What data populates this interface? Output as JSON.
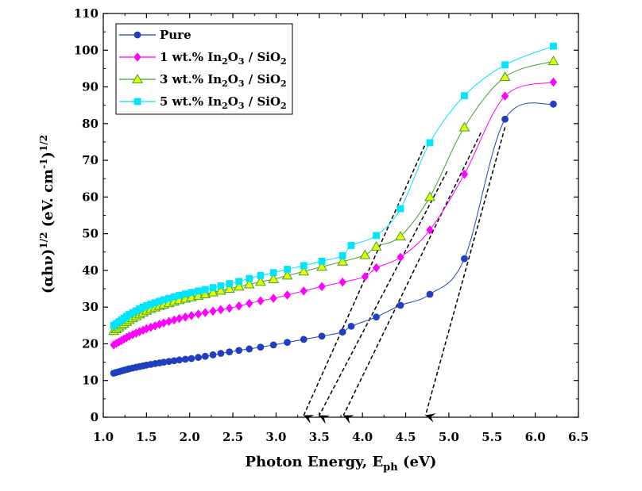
{
  "chart_data": {
    "type": "line",
    "xlabel": "Photon Energy, E",
    "xlabel_sub": "ph",
    "xlabel_unit": " (eV)",
    "ylabel": "(αhν)1/2 (eV. cm-1)1/2",
    "xlim": [
      1.0,
      6.5
    ],
    "ylim": [
      0,
      110
    ],
    "xticks": [
      1.0,
      1.5,
      2.0,
      2.5,
      3.0,
      3.5,
      4.0,
      4.5,
      5.0,
      5.5,
      6.0,
      6.5
    ],
    "yticks": [
      0,
      10,
      20,
      30,
      40,
      50,
      60,
      70,
      80,
      90,
      100,
      110
    ],
    "xtick_labels": [
      "1.0",
      "1.5",
      "2.0",
      "2.5",
      "3.0",
      "3.5",
      "4.0",
      "4.5",
      "5.0",
      "5.5",
      "6.0",
      "6.5"
    ],
    "ytick_labels": [
      "0",
      "10",
      "20",
      "30",
      "40",
      "50",
      "60",
      "70",
      "80",
      "90",
      "100",
      "110"
    ],
    "grid": false,
    "legend_position": "top-left",
    "series": [
      {
        "name": "Pure",
        "color": "#1f3fbf",
        "marker": "circle",
        "points": [
          [
            1.12,
            12.0
          ],
          [
            1.15,
            12.2
          ],
          [
            1.18,
            12.4
          ],
          [
            1.21,
            12.6
          ],
          [
            1.24,
            12.8
          ],
          [
            1.27,
            13.0
          ],
          [
            1.3,
            13.2
          ],
          [
            1.34,
            13.4
          ],
          [
            1.38,
            13.6
          ],
          [
            1.42,
            13.8
          ],
          [
            1.46,
            14.0
          ],
          [
            1.5,
            14.2
          ],
          [
            1.55,
            14.4
          ],
          [
            1.6,
            14.6
          ],
          [
            1.65,
            14.8
          ],
          [
            1.7,
            15.0
          ],
          [
            1.76,
            15.2
          ],
          [
            1.82,
            15.4
          ],
          [
            1.88,
            15.6
          ],
          [
            1.95,
            15.8
          ],
          [
            2.02,
            16.0
          ],
          [
            2.1,
            16.3
          ],
          [
            2.18,
            16.6
          ],
          [
            2.27,
            17.0
          ],
          [
            2.36,
            17.4
          ],
          [
            2.46,
            17.8
          ],
          [
            2.57,
            18.2
          ],
          [
            2.69,
            18.6
          ],
          [
            2.82,
            19.1
          ],
          [
            2.97,
            19.7
          ],
          [
            3.13,
            20.4
          ],
          [
            3.32,
            21.2
          ],
          [
            3.53,
            22.1
          ],
          [
            3.77,
            23.2
          ],
          [
            3.87,
            24.8
          ],
          [
            4.16,
            27.3
          ],
          [
            4.44,
            30.5
          ],
          [
            4.78,
            33.5
          ],
          [
            5.18,
            43.2
          ],
          [
            5.65,
            81.2
          ],
          [
            6.21,
            85.3
          ]
        ]
      },
      {
        "name": "1 wt.% In2O3 / SiO2",
        "color": "#ff00ff",
        "marker": "diamond",
        "points": [
          [
            1.12,
            19.7
          ],
          [
            1.15,
            20.1
          ],
          [
            1.18,
            20.5
          ],
          [
            1.21,
            20.9
          ],
          [
            1.24,
            21.3
          ],
          [
            1.27,
            21.7
          ],
          [
            1.3,
            22.1
          ],
          [
            1.34,
            22.5
          ],
          [
            1.38,
            22.9
          ],
          [
            1.42,
            23.3
          ],
          [
            1.46,
            23.7
          ],
          [
            1.5,
            24.1
          ],
          [
            1.55,
            24.5
          ],
          [
            1.6,
            24.9
          ],
          [
            1.65,
            25.3
          ],
          [
            1.7,
            25.7
          ],
          [
            1.76,
            26.1
          ],
          [
            1.82,
            26.5
          ],
          [
            1.88,
            26.9
          ],
          [
            1.95,
            27.3
          ],
          [
            2.02,
            27.7
          ],
          [
            2.1,
            28.1
          ],
          [
            2.18,
            28.5
          ],
          [
            2.27,
            28.9
          ],
          [
            2.36,
            29.3
          ],
          [
            2.46,
            29.7
          ],
          [
            2.57,
            30.3
          ],
          [
            2.69,
            31.0
          ],
          [
            2.82,
            31.7
          ],
          [
            2.97,
            32.4
          ],
          [
            3.13,
            33.3
          ],
          [
            3.32,
            34.4
          ],
          [
            3.53,
            35.6
          ],
          [
            3.77,
            36.8
          ],
          [
            4.03,
            38.3
          ],
          [
            4.16,
            40.7
          ],
          [
            4.44,
            43.6
          ],
          [
            4.78,
            51.0
          ],
          [
            5.18,
            66.2
          ],
          [
            5.65,
            87.5
          ],
          [
            6.21,
            91.3
          ]
        ]
      },
      {
        "name": "3 wt.% In2O3 / SiO2",
        "color": "#3fa02a",
        "fill": "#e6ff00",
        "marker": "triangle",
        "points": [
          [
            1.12,
            23.5
          ],
          [
            1.15,
            24.0
          ],
          [
            1.18,
            24.5
          ],
          [
            1.21,
            25.0
          ],
          [
            1.24,
            25.5
          ],
          [
            1.27,
            26.0
          ],
          [
            1.3,
            26.5
          ],
          [
            1.34,
            27.0
          ],
          [
            1.38,
            27.5
          ],
          [
            1.42,
            28.0
          ],
          [
            1.46,
            28.5
          ],
          [
            1.5,
            29.0
          ],
          [
            1.55,
            29.5
          ],
          [
            1.6,
            29.9
          ],
          [
            1.65,
            30.3
          ],
          [
            1.7,
            30.7
          ],
          [
            1.76,
            31.1
          ],
          [
            1.82,
            31.5
          ],
          [
            1.88,
            31.9
          ],
          [
            1.95,
            32.3
          ],
          [
            2.02,
            32.7
          ],
          [
            2.1,
            33.1
          ],
          [
            2.18,
            33.5
          ],
          [
            2.27,
            34.0
          ],
          [
            2.36,
            34.5
          ],
          [
            2.46,
            35.0
          ],
          [
            2.57,
            35.6
          ],
          [
            2.69,
            36.2
          ],
          [
            2.82,
            36.9
          ],
          [
            2.97,
            37.6
          ],
          [
            3.13,
            38.6
          ],
          [
            3.32,
            39.7
          ],
          [
            3.53,
            41.0
          ],
          [
            3.77,
            42.4
          ],
          [
            4.03,
            44.2
          ],
          [
            4.16,
            46.5
          ],
          [
            4.44,
            49.3
          ],
          [
            4.78,
            60.0
          ],
          [
            5.18,
            79.0
          ],
          [
            5.65,
            92.7
          ],
          [
            6.21,
            97.0
          ]
        ]
      },
      {
        "name": "5 wt.% In2O3 / SiO2",
        "color": "#00e5ff",
        "marker": "square",
        "points": [
          [
            1.12,
            25.0
          ],
          [
            1.15,
            25.5
          ],
          [
            1.18,
            26.0
          ],
          [
            1.21,
            26.5
          ],
          [
            1.24,
            27.0
          ],
          [
            1.27,
            27.5
          ],
          [
            1.3,
            28.0
          ],
          [
            1.34,
            28.5
          ],
          [
            1.38,
            29.0
          ],
          [
            1.42,
            29.5
          ],
          [
            1.46,
            30.0
          ],
          [
            1.5,
            30.4
          ],
          [
            1.55,
            30.8
          ],
          [
            1.6,
            31.2
          ],
          [
            1.65,
            31.6
          ],
          [
            1.7,
            32.0
          ],
          [
            1.76,
            32.4
          ],
          [
            1.82,
            32.8
          ],
          [
            1.88,
            33.2
          ],
          [
            1.95,
            33.6
          ],
          [
            2.02,
            34.0
          ],
          [
            2.1,
            34.4
          ],
          [
            2.18,
            34.8
          ],
          [
            2.27,
            35.3
          ],
          [
            2.36,
            35.8
          ],
          [
            2.46,
            36.4
          ],
          [
            2.57,
            37.0
          ],
          [
            2.69,
            37.8
          ],
          [
            2.82,
            38.6
          ],
          [
            2.97,
            39.4
          ],
          [
            3.13,
            40.3
          ],
          [
            3.32,
            41.3
          ],
          [
            3.53,
            42.5
          ],
          [
            3.77,
            44.0
          ],
          [
            3.87,
            46.8
          ],
          [
            4.16,
            49.5
          ],
          [
            4.44,
            56.8
          ],
          [
            4.78,
            74.8
          ],
          [
            5.18,
            87.6
          ],
          [
            5.65,
            96.0
          ],
          [
            6.21,
            101.1
          ]
        ]
      }
    ],
    "annotations": [
      {
        "type": "dashed-arrow",
        "from": [
          4.72,
          74.0
        ],
        "to": [
          3.32,
          0.5
        ]
      },
      {
        "type": "dashed-arrow",
        "from": [
          4.98,
          67.0
        ],
        "to": [
          3.5,
          0.5
        ]
      },
      {
        "type": "dashed-arrow",
        "from": [
          5.37,
          77.5
        ],
        "to": [
          3.78,
          0.5
        ]
      },
      {
        "type": "dashed-arrow",
        "from": [
          5.65,
          79.0
        ],
        "to": [
          4.73,
          0.5
        ]
      }
    ]
  }
}
